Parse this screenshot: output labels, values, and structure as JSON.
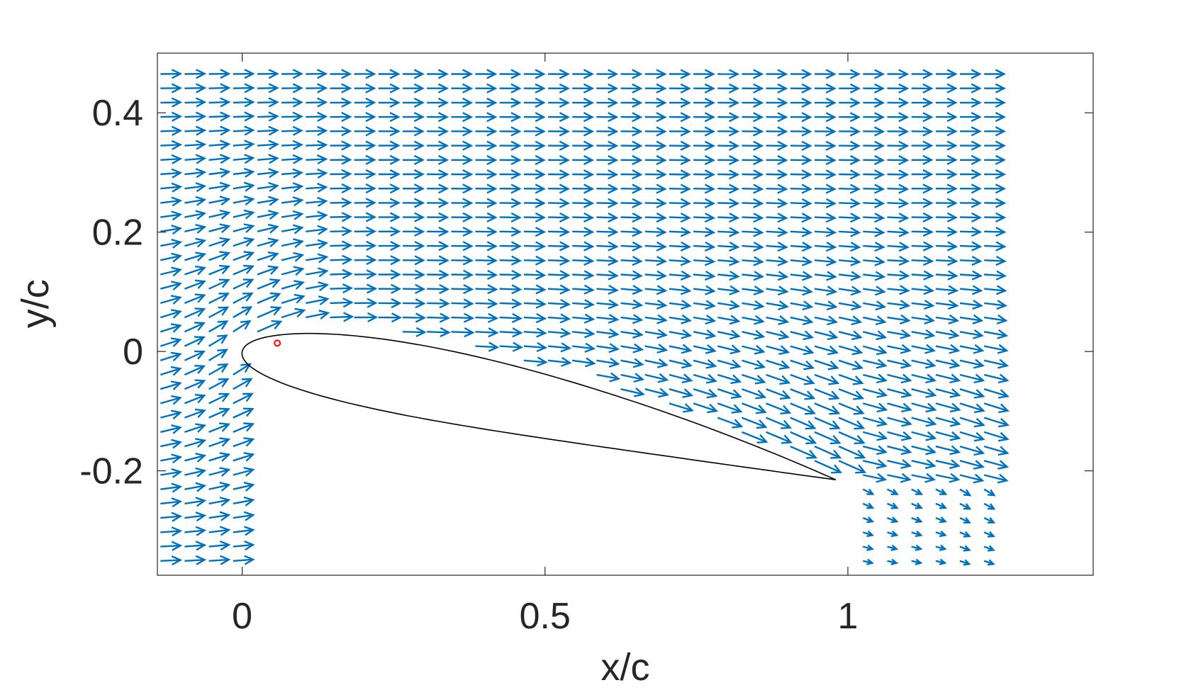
{
  "chart_data": {
    "type": "quiver",
    "xlabel": "x/c",
    "ylabel": "y/c",
    "xlim": [
      -0.14,
      1.405
    ],
    "ylim": [
      -0.375,
      0.5
    ],
    "xticks": [
      0,
      0.5,
      1
    ],
    "xtick_labels": [
      "0",
      "0.5",
      "1"
    ],
    "yticks": [
      -0.2,
      0,
      0.2,
      0.4
    ],
    "ytick_labels": [
      "-0.2",
      "0",
      "0.2",
      "0.4"
    ],
    "grid": false,
    "box": true,
    "series": [
      {
        "kind": "velocity-vector-field",
        "color": "#0072BD",
        "x_range": [
          -0.135,
          1.225
        ],
        "y_range": [
          -0.365,
          0.465
        ],
        "uniform_direction": [
          1.0,
          0.0
        ],
        "description_of_flow": "freestream left to right; upwash ahead of leading edge; downwash behind trailing edge"
      },
      {
        "kind": "airfoil-outline",
        "color": "#000000",
        "leading_edge": [
          0.0,
          0.0
        ],
        "trailing_edge": [
          0.98,
          -0.215
        ]
      },
      {
        "kind": "marker",
        "color": "#ff0000",
        "x": 0.058,
        "y": 0.014
      }
    ]
  }
}
